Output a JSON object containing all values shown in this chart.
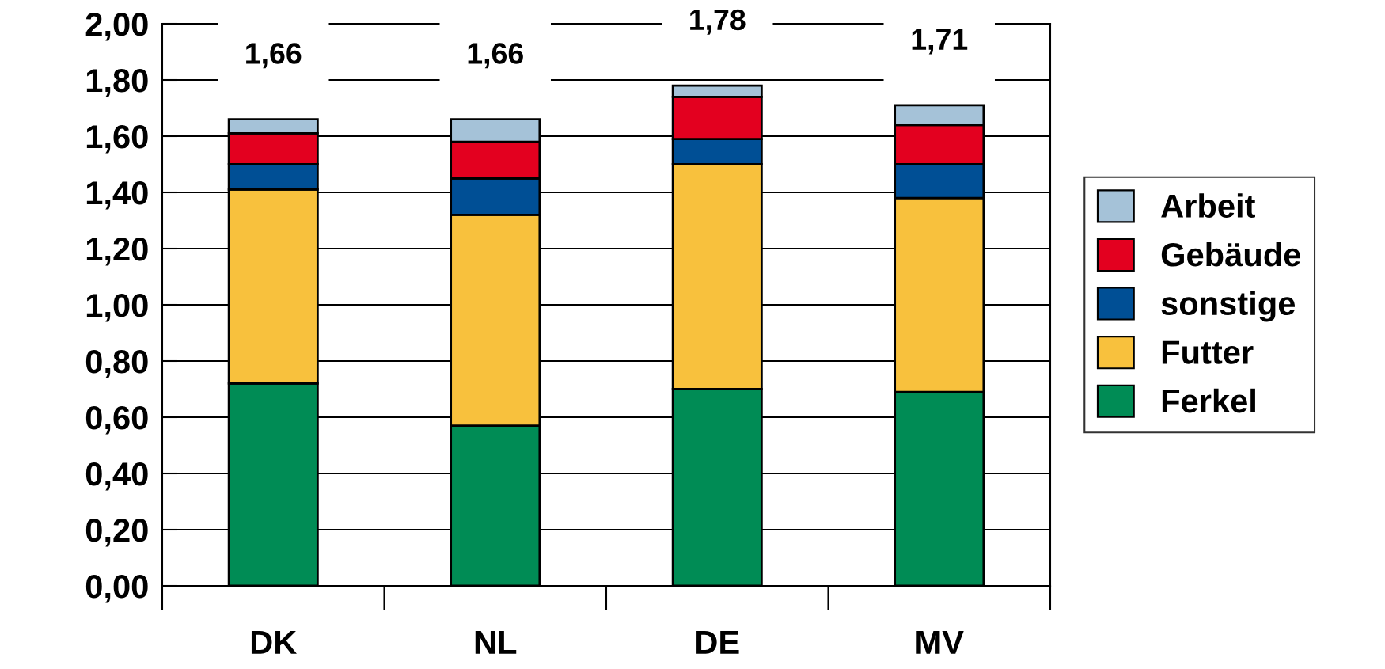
{
  "chart_data": {
    "type": "bar",
    "stacked": true,
    "categories": [
      "DK",
      "NL",
      "DE",
      "MV"
    ],
    "series": [
      {
        "name": "Ferkel",
        "color": "#008c55",
        "values": [
          0.72,
          0.57,
          0.7,
          0.69
        ]
      },
      {
        "name": "Futter",
        "color": "#f8c13d",
        "values": [
          0.69,
          0.75,
          0.8,
          0.69
        ]
      },
      {
        "name": "sonstige",
        "color": "#004f95",
        "values": [
          0.09,
          0.13,
          0.09,
          0.12
        ]
      },
      {
        "name": "Gebäude",
        "color": "#e3001f",
        "values": [
          0.11,
          0.13,
          0.15,
          0.14
        ]
      },
      {
        "name": "Arbeit",
        "color": "#a5c2d8",
        "values": [
          0.05,
          0.08,
          0.04,
          0.07
        ]
      }
    ],
    "totals": [
      "1,66",
      "1,66",
      "1,78",
      "1,71"
    ],
    "ylim": [
      0,
      2
    ],
    "yticks": [
      {
        "value": 0,
        "label": "0,00"
      },
      {
        "value": 0.2,
        "label": "0,20"
      },
      {
        "value": 0.4,
        "label": "0,40"
      },
      {
        "value": 0.6,
        "label": "0,60"
      },
      {
        "value": 0.8,
        "label": "0,80"
      },
      {
        "value": 1.0,
        "label": "1,00"
      },
      {
        "value": 1.2,
        "label": "1,20"
      },
      {
        "value": 1.4,
        "label": "1,40"
      },
      {
        "value": 1.6,
        "label": "1,60"
      },
      {
        "value": 1.8,
        "label": "1,80"
      },
      {
        "value": 2.0,
        "label": "2,00"
      }
    ],
    "grid": "y",
    "legend": "right"
  }
}
